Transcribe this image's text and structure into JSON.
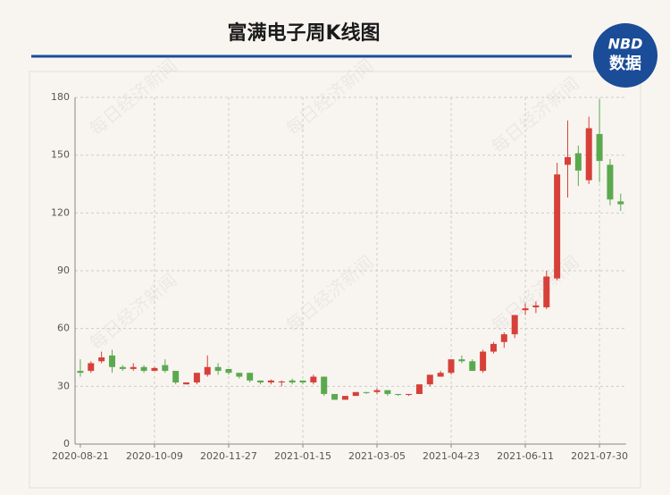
{
  "header": {
    "title": "富满电子周K线图",
    "logo_top": "NBD",
    "logo_bottom": "数据"
  },
  "watermark": "每日经济新闻",
  "chart_data": {
    "type": "candlestick",
    "categories": [
      "2020-08-21",
      null,
      null,
      null,
      null,
      null,
      null,
      "2020-10-09",
      null,
      null,
      null,
      null,
      null,
      null,
      "2020-11-27",
      null,
      null,
      null,
      null,
      null,
      null,
      "2021-01-15",
      null,
      null,
      null,
      null,
      null,
      null,
      "2021-03-05",
      null,
      null,
      null,
      null,
      null,
      null,
      "2021-04-23",
      null,
      null,
      null,
      null,
      null,
      null,
      "2021-06-11",
      null,
      null,
      null,
      null,
      null,
      null,
      "2021-07-30",
      null,
      null
    ],
    "open": [
      38,
      38,
      43,
      46,
      40,
      39,
      40,
      38,
      41,
      38,
      31,
      32,
      36,
      40,
      39,
      37,
      37,
      33,
      32,
      32,
      33,
      33,
      32,
      35,
      26,
      23,
      25,
      27,
      27,
      28,
      26,
      25.5,
      26,
      31,
      35,
      37,
      44,
      43,
      38,
      48,
      53,
      57,
      69.5,
      71,
      71,
      86,
      145,
      151,
      137,
      161,
      145,
      126
    ],
    "close": [
      37,
      42,
      45,
      40,
      39,
      40,
      38,
      39.5,
      38,
      32,
      32,
      37,
      40,
      38,
      37,
      35,
      33,
      32,
      33,
      32.5,
      32,
      32,
      35,
      26,
      23,
      25,
      27,
      26.5,
      28,
      26,
      25.5,
      26,
      31,
      36,
      37,
      44,
      43,
      38,
      48,
      52,
      57,
      67,
      70.5,
      72,
      87,
      140,
      149,
      142,
      164,
      147,
      127,
      124.5
    ],
    "low": [
      35,
      37,
      42,
      37,
      38,
      38,
      37,
      38,
      37,
      31,
      31,
      31,
      35,
      36,
      36,
      34,
      32,
      31,
      31,
      30,
      31,
      31,
      31,
      25,
      23,
      23,
      25,
      26,
      26,
      25,
      25,
      25,
      26,
      30,
      35,
      36,
      42,
      38,
      37,
      47,
      50,
      55,
      67,
      68,
      70,
      85,
      128,
      134,
      135,
      136,
      124,
      121
    ],
    "high": [
      44,
      43,
      48,
      49,
      41,
      42,
      41,
      40,
      44,
      38,
      32,
      37,
      46,
      42,
      39,
      37,
      37,
      33,
      33.5,
      33,
      34,
      33,
      36,
      35,
      26,
      25,
      27,
      27,
      29,
      28,
      26,
      26,
      31,
      36,
      38,
      44,
      46,
      44,
      49,
      53,
      58,
      67,
      73,
      74,
      90,
      146,
      168,
      155,
      170,
      179,
      148,
      130
    ],
    "up_color": "#d7403a",
    "down_color": "#5ba94f",
    "ylim": [
      0,
      180
    ],
    "yticks": [
      0,
      30,
      60,
      90,
      120,
      150,
      180
    ],
    "grid": true
  }
}
